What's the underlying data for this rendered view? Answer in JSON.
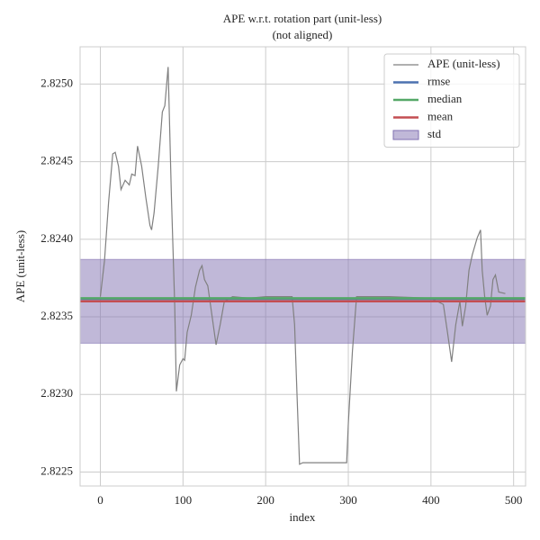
{
  "chart_data": {
    "type": "line",
    "title": "APE w.r.t. rotation part (unit-less)",
    "subtitle": "(not aligned)",
    "xlabel": "index",
    "ylabel": "APE (unit-less)",
    "xlim": [
      -24.5,
      514.5
    ],
    "ylim": [
      2.82241,
      2.82524
    ],
    "xticks": [
      0,
      100,
      200,
      300,
      400,
      500
    ],
    "yticks": [
      2.8225,
      {
        "value": 2.823,
        "label": "2.8230"
      },
      2.8235,
      {
        "value": 2.824,
        "label": "2.8240"
      },
      2.8245,
      {
        "value": 2.825,
        "label": "2.8250"
      }
    ],
    "grid": true,
    "legend": "upper right",
    "series": [
      {
        "name": "APE (unit-less)",
        "color": "#808080",
        "x": [
          0,
          5,
          10,
          15,
          18,
          22,
          25,
          30,
          35,
          38,
          42,
          45,
          50,
          55,
          60,
          62,
          65,
          70,
          75,
          78,
          82,
          86,
          90,
          92,
          96,
          100,
          102,
          105,
          110,
          115,
          120,
          123,
          126,
          130,
          135,
          140,
          145,
          150,
          160,
          180,
          200,
          220,
          232,
          235,
          238,
          241,
          245,
          260,
          280,
          298,
          300,
          305,
          310,
          350,
          400,
          415,
          420,
          425,
          430,
          435,
          438,
          442,
          446,
          450,
          456,
          460,
          462,
          465,
          468,
          472,
          475,
          478,
          482,
          490
        ],
        "values": [
          2.82363,
          2.82386,
          2.82424,
          2.82455,
          2.82456,
          2.82447,
          2.82432,
          2.82438,
          2.82435,
          2.82442,
          2.82441,
          2.8246,
          2.82447,
          2.82427,
          2.82409,
          2.82406,
          2.82417,
          2.82447,
          2.82482,
          2.82486,
          2.82511,
          2.82427,
          2.82357,
          2.82302,
          2.82319,
          2.82323,
          2.82322,
          2.8234,
          2.82351,
          2.82369,
          2.8238,
          2.82383,
          2.82374,
          2.8237,
          2.82351,
          2.82332,
          2.82345,
          2.8236,
          2.82363,
          2.82362,
          2.82363,
          2.82363,
          2.82363,
          2.82345,
          2.82299,
          2.82255,
          2.82256,
          2.82256,
          2.82256,
          2.82256,
          2.82281,
          2.82328,
          2.82363,
          2.82363,
          2.82362,
          2.82358,
          2.8234,
          2.82321,
          2.82345,
          2.8236,
          2.82344,
          2.82357,
          2.8238,
          2.8239,
          2.82401,
          2.82406,
          2.8238,
          2.82363,
          2.82351,
          2.82357,
          2.82374,
          2.82377,
          2.82366,
          2.82365
        ]
      }
    ],
    "hlines": [
      {
        "name": "rmse",
        "color": "#4c72b0",
        "value": 2.823616
      },
      {
        "name": "median",
        "color": "#55a868",
        "value": 2.82362
      },
      {
        "name": "mean",
        "color": "#c44e52",
        "value": 2.8236
      }
    ],
    "band": {
      "name": "std",
      "color": "#8172b2",
      "value": 0.00027
    }
  }
}
